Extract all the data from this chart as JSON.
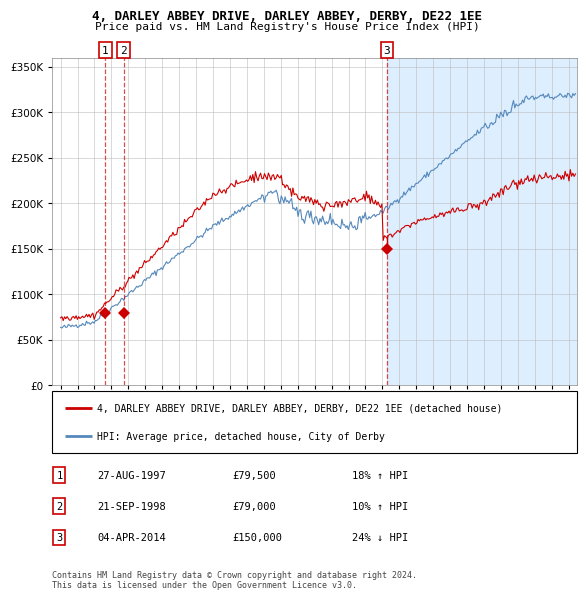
{
  "title1": "4, DARLEY ABBEY DRIVE, DARLEY ABBEY, DERBY, DE22 1EE",
  "title2": "Price paid vs. HM Land Registry's House Price Index (HPI)",
  "legend_line1": "4, DARLEY ABBEY DRIVE, DARLEY ABBEY, DERBY, DE22 1EE (detached house)",
  "legend_line2": "HPI: Average price, detached house, City of Derby",
  "sale_dates_num": [
    1997.65,
    1998.72,
    2014.26
  ],
  "sale_prices": [
    79500,
    79000,
    150000
  ],
  "sale_labels": [
    "1",
    "2",
    "3"
  ],
  "table_rows": [
    [
      "1",
      "27-AUG-1997",
      "£79,500",
      "18% ↑ HPI"
    ],
    [
      "2",
      "21-SEP-1998",
      "£79,000",
      "10% ↑ HPI"
    ],
    [
      "3",
      "04-APR-2014",
      "£150,000",
      "24% ↓ HPI"
    ]
  ],
  "copyright_text": "Contains HM Land Registry data © Crown copyright and database right 2024.\nThis data is licensed under the Open Government Licence v3.0.",
  "red_color": "#cc0000",
  "blue_color": "#5588bb",
  "bg_shaded": "#ddeeff",
  "grid_color": "#bbbbbb",
  "ylim": [
    0,
    360000
  ],
  "xlim_start": 1994.5,
  "xlim_end": 2025.5
}
